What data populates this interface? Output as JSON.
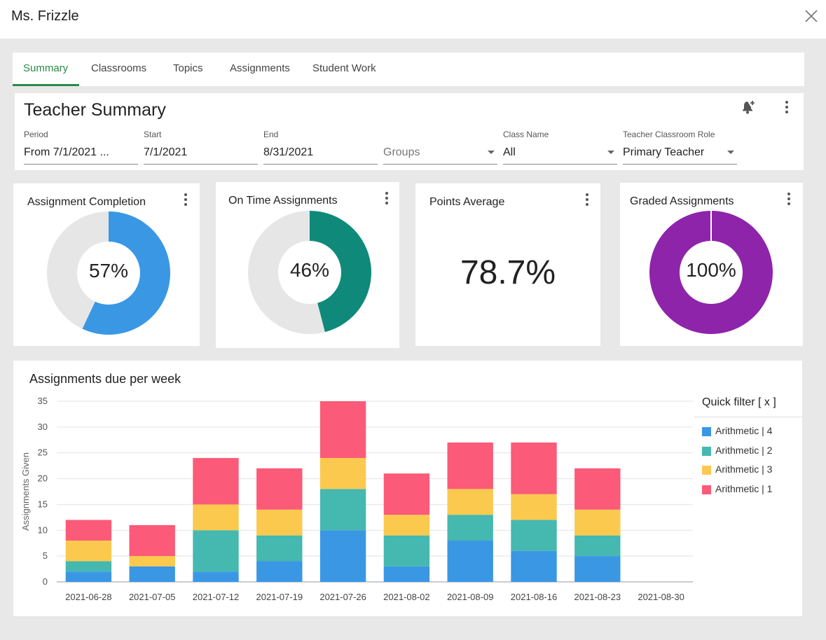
{
  "window": {
    "title": "Ms. Frizzle"
  },
  "tabs": [
    {
      "label": "Summary",
      "active": true
    },
    {
      "label": "Classrooms",
      "active": false
    },
    {
      "label": "Topics",
      "active": false
    },
    {
      "label": "Assignments",
      "active": false
    },
    {
      "label": "Student Work",
      "active": false
    }
  ],
  "summary": {
    "heading": "Teacher Summary",
    "filters": {
      "period": {
        "label": "Period",
        "value": "From 7/1/2021 ..."
      },
      "start": {
        "label": "Start",
        "value": "7/1/2021"
      },
      "end": {
        "label": "End",
        "value": "8/31/2021"
      },
      "groups": {
        "label": "",
        "placeholder": "Groups"
      },
      "class_name": {
        "label": "Class Name",
        "value": "All"
      },
      "role": {
        "label": "Teacher Classroom Role",
        "value": "Primary Teacher"
      }
    }
  },
  "metrics": {
    "completion": {
      "title": "Assignment Completion",
      "label": "57%",
      "percent": 57,
      "color": "#3a97e4"
    },
    "on_time": {
      "title": "On Time Assignments",
      "label": "46%",
      "percent": 46,
      "color": "#0f8a7a"
    },
    "points": {
      "title": "Points Average",
      "value": "78.7%"
    },
    "graded": {
      "title": "Graded Assignments",
      "label": "100%",
      "percent": 100,
      "color": "#8e24aa"
    },
    "track_color": "#e6e6e6"
  },
  "chart_data": {
    "type": "bar",
    "stacked": true,
    "title": "Assignments due per week",
    "xlabel": "",
    "ylabel": "Assignments Given",
    "ylim": [
      0,
      35
    ],
    "yticks": [
      0,
      5,
      10,
      15,
      20,
      25,
      30,
      35
    ],
    "grid": true,
    "legend_position": "right",
    "categories": [
      "2021-06-28",
      "2021-07-05",
      "2021-07-12",
      "2021-07-19",
      "2021-07-26",
      "2021-08-02",
      "2021-08-09",
      "2021-08-16",
      "2021-08-23",
      "2021-08-30"
    ],
    "series": [
      {
        "name": "Arithmetic | 4",
        "color": "#3a97e4",
        "values": [
          2,
          3,
          2,
          4,
          10,
          3,
          8,
          6,
          5,
          0
        ]
      },
      {
        "name": "Arithmetic | 2",
        "color": "#45b8b0",
        "values": [
          2,
          0,
          8,
          5,
          8,
          6,
          5,
          6,
          4,
          0
        ]
      },
      {
        "name": "Arithmetic | 3",
        "color": "#fbc94e",
        "values": [
          4,
          2,
          5,
          5,
          6,
          4,
          5,
          5,
          5,
          0
        ]
      },
      {
        "name": "Arithmetic | 1",
        "color": "#fb5a78",
        "values": [
          4,
          6,
          9,
          8,
          11,
          8,
          9,
          10,
          8,
          0
        ]
      }
    ]
  },
  "legend": {
    "title": "Quick filter [ x ]"
  }
}
